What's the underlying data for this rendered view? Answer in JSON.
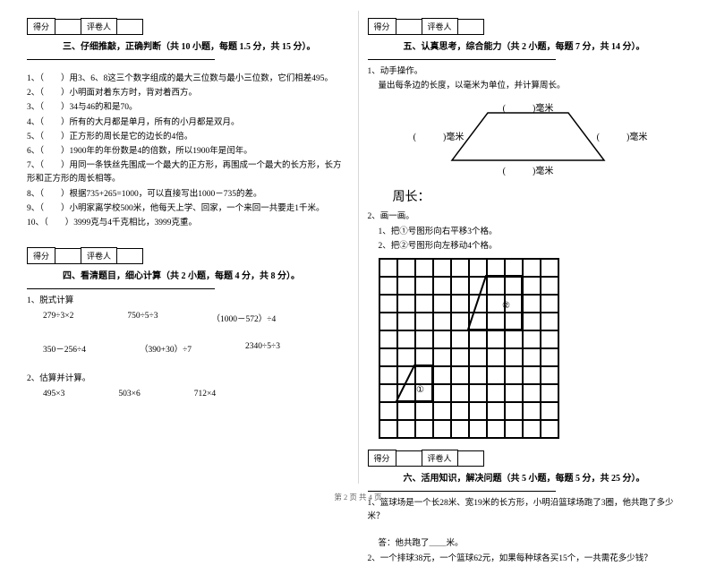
{
  "score_labels": {
    "score": "得分",
    "grader": "评卷人"
  },
  "section3": {
    "title": "三、仔细推敲，正确判断（共 10 小题，每题 1.5 分，共 15 分）。",
    "items": [
      "1、（　　）用3、6、8这三个数字组成的最大三位数与最小三位数，它们相差495。",
      "2、（　　）小明面对着东方时，背对着西方。",
      "3、（　　）34与46的和是70。",
      "4、（　　）所有的大月都是单月，所有的小月都是双月。",
      "5、（　　）正方形的周长是它的边长的4倍。",
      "6、（　　）1900年的年份数是4的倍数，所以1900年是闰年。",
      "7、（　　）用同一条铁丝先围成一个最大的正方形，再围成一个最大的长方形，长方形和正方形的周长相等。",
      "8、（　　）根据735+265=1000，可以直接写出1000－735的差。",
      "9、（　　）小明家离学校500米，他每天上学、回家，一个来回一共要走1千米。",
      "10、（　　）3999克与4千克相比，3999克重。"
    ]
  },
  "section4": {
    "title": "四、看清题目，细心计算（共 2 小题，每题 4 分，共 8 分）。",
    "q1_label": "1、脱式计算",
    "row1": [
      "279÷3×2",
      "750÷5÷3",
      "（1000－572）÷4"
    ],
    "row2": [
      "350－256÷4",
      "（390+30）÷7",
      "2340÷5÷3"
    ],
    "q2_label": "2、估算并计算。",
    "row3": [
      "495×3",
      "503×6",
      "712×4"
    ]
  },
  "section5": {
    "title": "五、认真思考，综合能力（共 2 小题，每题 7 分，共 14 分）。",
    "q1_label": "1、动手操作。",
    "q1_sub": "量出每条边的长度，以毫米为单位，并计算周长。",
    "unit": "毫米",
    "blank": "(　　　)",
    "perimeter": "周长：",
    "q2_label": "2、画一画。",
    "q2_sub1": "1、把①号图形向右平移3个格。",
    "q2_sub2": "2、把②号图形向左移动4个格。",
    "shape1": "①",
    "shape2": "②"
  },
  "section6": {
    "title": "六、活用知识，解决问题（共 5 小题，每题 5 分，共 25 分）。",
    "q1": "1、篮球场是一个长28米、宽19米的长方形，小明沿篮球场跑了3圈，他共跑了多少米？",
    "q1_ans": "答：他共跑了＿＿米。",
    "q2": "2、一个排球38元，一个篮球62元，如果每种球各买15个，一共需花多少钱？"
  },
  "footer": "第 2 页 共 4 页",
  "grid": {
    "rows": 10,
    "cols": 10
  },
  "colors": {
    "line": "#000000",
    "bg": "#ffffff"
  }
}
